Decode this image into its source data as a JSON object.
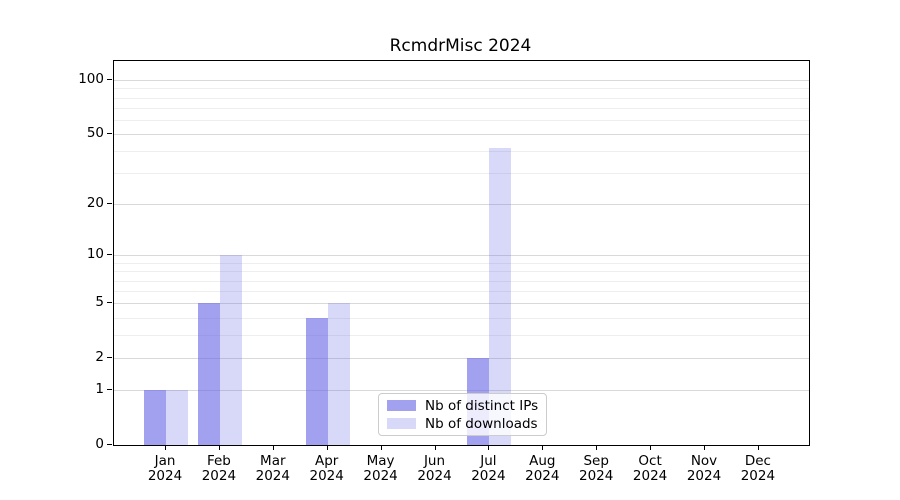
{
  "title": "RcmdrMisc 2024",
  "chart_data": {
    "type": "bar",
    "title": "RcmdrMisc 2024",
    "categories": [
      "Jan 2024",
      "Feb 2024",
      "Mar 2024",
      "Apr 2024",
      "May 2024",
      "Jun 2024",
      "Jul 2024",
      "Aug 2024",
      "Sep 2024",
      "Oct 2024",
      "Nov 2024",
      "Dec 2024"
    ],
    "months": [
      "Jan",
      "Feb",
      "Mar",
      "Apr",
      "May",
      "Jun",
      "Jul",
      "Aug",
      "Sep",
      "Oct",
      "Nov",
      "Dec"
    ],
    "year_label": "2024",
    "series": [
      {
        "name": "Nb of distinct IPs",
        "color": "rgba(98,98,230,0.6)",
        "values": [
          1,
          5,
          0,
          4,
          0,
          0,
          2,
          0,
          0,
          0,
          0,
          0
        ]
      },
      {
        "name": "Nb of downloads",
        "color": "rgba(98,98,230,0.25)",
        "values": [
          1,
          10,
          0,
          5,
          0,
          0,
          42,
          0,
          0,
          0,
          0,
          0
        ]
      }
    ],
    "xlabel": "",
    "ylabel": "",
    "yscale": "log1p",
    "ylim": [
      0,
      127
    ],
    "yticks": [
      0,
      1,
      2,
      5,
      10,
      20,
      50,
      100
    ],
    "minor_gridlines": [
      3,
      4,
      6,
      7,
      8,
      9,
      30,
      40,
      60,
      70,
      80,
      90
    ],
    "grid": "on",
    "legend_position": "lower center (inside plot)",
    "colors": {
      "bar_base": "#6262e6",
      "major_grid": "#d9d9d9",
      "minor_grid": "#eeeeee",
      "axis": "#000000",
      "background": "#ffffff"
    }
  }
}
